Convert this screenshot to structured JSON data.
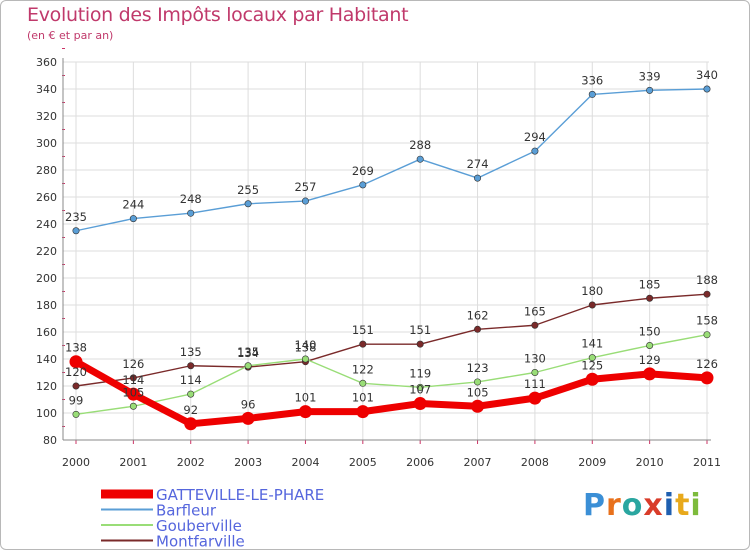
{
  "title": "Evolution des Impôts locaux par Habitant",
  "subtitle": "(en € et par an)",
  "logo": {
    "text": "Proxiti",
    "letters": [
      "P",
      "r",
      "o",
      "x",
      "i",
      "t",
      "i"
    ],
    "colors": [
      "#3b8fd6",
      "#e8711c",
      "#2aa6a0",
      "#d93c2a",
      "#1f5fb0",
      "#e8a91c",
      "#7dbb3c"
    ]
  },
  "chart_data": {
    "type": "line",
    "x": [
      "2000",
      "2001",
      "2002",
      "2003",
      "2004",
      "2005",
      "2006",
      "2007",
      "2008",
      "2009",
      "2010",
      "2011"
    ],
    "ylim": [
      80,
      360
    ],
    "yticks": [
      80,
      100,
      120,
      140,
      160,
      180,
      200,
      220,
      240,
      260,
      280,
      300,
      320,
      340,
      360
    ],
    "grid": true,
    "legend_position": "bottom-left",
    "series": [
      {
        "name": "GATTEVILLE-LE-PHARE",
        "color": "#ee0000",
        "values": [
          138,
          114,
          92,
          96,
          101,
          101,
          107,
          105,
          111,
          125,
          129,
          126
        ]
      },
      {
        "name": "Barfleur",
        "color": "#5a9ed6",
        "values": [
          235,
          244,
          248,
          255,
          257,
          269,
          288,
          274,
          294,
          336,
          339,
          340
        ]
      },
      {
        "name": "Gouberville",
        "color": "#99dd77",
        "values": [
          99,
          105,
          114,
          135,
          140,
          122,
          119,
          123,
          130,
          141,
          150,
          158
        ]
      },
      {
        "name": "Montfarville",
        "color": "#7a2a2a",
        "values": [
          120,
          126,
          135,
          134,
          138,
          151,
          151,
          162,
          165,
          180,
          185,
          188
        ]
      }
    ]
  }
}
